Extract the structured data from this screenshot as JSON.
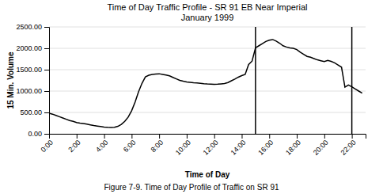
{
  "chart_data": {
    "type": "line",
    "title": "Time of Day Traffic Profile - SR 91 EB Near Imperial",
    "subtitle": "January 1999",
    "x_label": "Time of Day",
    "y_label": "15 Min. Volume",
    "caption": "Figure 7-9. Time of Day Profile of Traffic on SR 91",
    "color": "#000000",
    "grid": true,
    "xlim": [
      0,
      23
    ],
    "ylim": [
      0,
      2500
    ],
    "xticks": [
      {
        "value": 0,
        "label": "0:00"
      },
      {
        "value": 2,
        "label": "2:00"
      },
      {
        "value": 4,
        "label": "4:00"
      },
      {
        "value": 6,
        "label": "6:00"
      },
      {
        "value": 8,
        "label": "8:00"
      },
      {
        "value": 10,
        "label": "10:00"
      },
      {
        "value": 12,
        "label": "12:00"
      },
      {
        "value": 14,
        "label": "14:00"
      },
      {
        "value": 16,
        "label": "16:00"
      },
      {
        "value": 18,
        "label": "18:00"
      },
      {
        "value": 20,
        "label": "20:00"
      },
      {
        "value": 22,
        "label": "22:00"
      }
    ],
    "yticks": [
      {
        "value": 0,
        "label": "0.00"
      },
      {
        "value": 500,
        "label": "500.00"
      },
      {
        "value": 1000,
        "label": "1000.00"
      },
      {
        "value": 1500,
        "label": "1500.00"
      },
      {
        "value": 2000,
        "label": "2000.00"
      },
      {
        "value": 2500,
        "label": "2500.00"
      }
    ],
    "vlines": [
      15,
      22
    ],
    "x": [
      0,
      0.25,
      0.5,
      0.75,
      1.0,
      1.25,
      1.5,
      1.75,
      2.0,
      2.25,
      2.5,
      2.75,
      3.0,
      3.25,
      3.5,
      3.75,
      4.0,
      4.25,
      4.5,
      4.75,
      5.0,
      5.25,
      5.5,
      5.75,
      6.0,
      6.25,
      6.5,
      6.75,
      7.0,
      7.25,
      7.5,
      7.75,
      8.0,
      8.25,
      8.5,
      8.75,
      9.0,
      9.25,
      9.5,
      9.75,
      10.0,
      10.25,
      10.5,
      10.75,
      11.0,
      11.25,
      11.5,
      11.75,
      12.0,
      12.25,
      12.5,
      12.75,
      13.0,
      13.25,
      13.5,
      13.75,
      14.0,
      14.25,
      14.5,
      14.75,
      15.0,
      15.25,
      15.5,
      15.75,
      16.0,
      16.25,
      16.5,
      16.75,
      17.0,
      17.25,
      17.5,
      17.75,
      18.0,
      18.25,
      18.5,
      18.75,
      19.0,
      19.25,
      19.5,
      19.75,
      20.0,
      20.25,
      20.5,
      20.75,
      21.0,
      21.25,
      21.5,
      21.75,
      22.0,
      22.25,
      22.5,
      22.75
    ],
    "values": [
      480,
      460,
      430,
      400,
      370,
      340,
      310,
      290,
      265,
      250,
      240,
      225,
      210,
      195,
      182,
      170,
      158,
      152,
      148,
      153,
      175,
      220,
      290,
      390,
      540,
      740,
      980,
      1180,
      1330,
      1370,
      1390,
      1400,
      1405,
      1390,
      1375,
      1355,
      1320,
      1285,
      1250,
      1230,
      1215,
      1205,
      1195,
      1188,
      1180,
      1170,
      1165,
      1162,
      1158,
      1162,
      1168,
      1175,
      1200,
      1240,
      1280,
      1325,
      1360,
      1390,
      1620,
      1700,
      2010,
      2060,
      2110,
      2160,
      2190,
      2205,
      2170,
      2120,
      2060,
      2030,
      2010,
      2000,
      1970,
      1910,
      1860,
      1810,
      1790,
      1760,
      1730,
      1710,
      1690,
      1715,
      1695,
      1660,
      1610,
      1560,
      1090,
      1140,
      1100,
      1050,
      1000,
      950
    ]
  }
}
